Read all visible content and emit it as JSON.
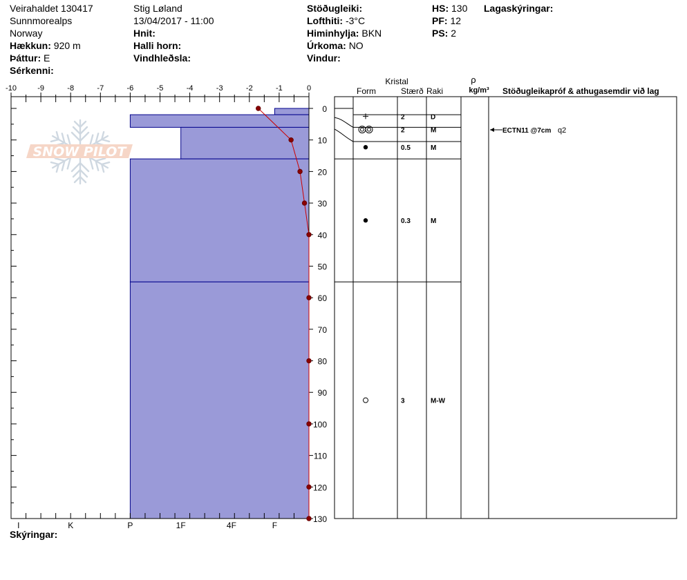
{
  "header": {
    "location": "Veirahaldet 130417",
    "region": "Sunnmorealps",
    "country": "Norway",
    "elevation_label": "Hækkun:",
    "elevation": "920 m",
    "aspect_label": "Þáttur:",
    "aspect": "E",
    "features_label": "Sérkenni:",
    "observer": "Stig Løland",
    "datetime": "13/04/2017 - 11:00",
    "coords_label": "Hnit:",
    "slope_label": "Halli horn:",
    "wind_loading_label": "Vindhleðsla:",
    "stability_label": "Stöðugleiki:",
    "air_temp_label": "Lofthiti:",
    "air_temp": "-3°C",
    "sky_label": "Himinhylja:",
    "sky": "BKN",
    "precip_label": "Úrkoma:",
    "precip": "NO",
    "wind_label": "Vindur:",
    "hs_label": "HS:",
    "hs": "130",
    "pf_label": "PF:",
    "pf": "12",
    "ps_label": "PS:",
    "ps": "2",
    "layer_notes_label": "Lagaskýringar:",
    "legend_label": "Skýringar:"
  },
  "logo": {
    "text": "SNOW PILOT"
  },
  "chart_data": {
    "type": "snow_profile",
    "temperature_axis": {
      "range": [
        -10,
        0
      ],
      "ticks": [
        -10,
        -9,
        -8,
        -7,
        -6,
        -5,
        -4,
        -3,
        -2,
        -1,
        0
      ],
      "tick_labels": [
        "-10",
        "-9",
        "-8",
        "-7",
        "-6",
        "-5",
        "-4",
        "-3",
        "-2",
        "-1",
        "0"
      ]
    },
    "depth_axis": {
      "range": [
        0,
        130
      ],
      "ticks": [
        0,
        10,
        20,
        30,
        40,
        50,
        60,
        70,
        80,
        90,
        100,
        110,
        120,
        130
      ],
      "tick_labels": [
        "0",
        "10",
        "20",
        "30",
        "40",
        "50",
        "60",
        "70",
        "80",
        "90",
        "100",
        "110",
        "120",
        "130"
      ]
    },
    "hardness_axis": {
      "labels": [
        "I",
        "K",
        "P",
        "1F",
        "4F",
        "F"
      ],
      "values": [
        -9.75,
        -8,
        -6,
        -4.3,
        -2.6,
        -1.15
      ]
    },
    "temperature_profile": [
      {
        "depth": 0,
        "temp": -1.7
      },
      {
        "depth": 10,
        "temp": -0.6
      },
      {
        "depth": 20,
        "temp": -0.3
      },
      {
        "depth": 30,
        "temp": -0.15
      },
      {
        "depth": 40,
        "temp": 0
      },
      {
        "depth": 60,
        "temp": 0
      },
      {
        "depth": 80,
        "temp": 0
      },
      {
        "depth": 100,
        "temp": 0
      },
      {
        "depth": 120,
        "temp": 0
      },
      {
        "depth": 130,
        "temp": 0
      }
    ],
    "hardness_layers": [
      {
        "top": 0,
        "bottom": 2,
        "hardness": -1.15
      },
      {
        "top": 2,
        "bottom": 6,
        "hardness": -6
      },
      {
        "top": 6,
        "bottom": 16,
        "hardness": -4.3
      },
      {
        "top": 16,
        "bottom": 55,
        "hardness": -6
      },
      {
        "top": 55,
        "bottom": 130,
        "hardness": -6
      }
    ],
    "columns": {
      "crystal_label": "Kristal",
      "form_label": "Form",
      "size_label": "Stærð",
      "moisture_label": "Raki",
      "density_symbol": "ρ",
      "density_unit": "kg/m³",
      "tests_label": "Stöðugleikapróf & athugasemdir við lag"
    },
    "layer_boundaries": [
      0,
      2,
      6,
      10.5,
      16,
      55,
      130
    ],
    "layers_table": [
      {
        "depth": 2.5,
        "form": "precip-particles",
        "size": "2",
        "moisture": "D"
      },
      {
        "depth": 6.7,
        "form": "melt-forms",
        "size": "2",
        "moisture": "M"
      },
      {
        "depth": 12.3,
        "form": "rounded-grains",
        "size": "0.5",
        "moisture": "M"
      },
      {
        "depth": 35.5,
        "form": "rounded-grains",
        "size": "0.3",
        "moisture": "M"
      },
      {
        "depth": 92.5,
        "form": "melt-freeze-crust",
        "size": "3",
        "moisture": "M-W"
      }
    ],
    "tests": [
      {
        "depth": 7,
        "text": "ECTN11 @7cm",
        "quality": "q2"
      }
    ],
    "colors": {
      "layer_fill": "#9a9ad8",
      "layer_stroke": "#00008b",
      "temp_line": "#cc0000",
      "temp_marker": "#8b0000"
    }
  }
}
